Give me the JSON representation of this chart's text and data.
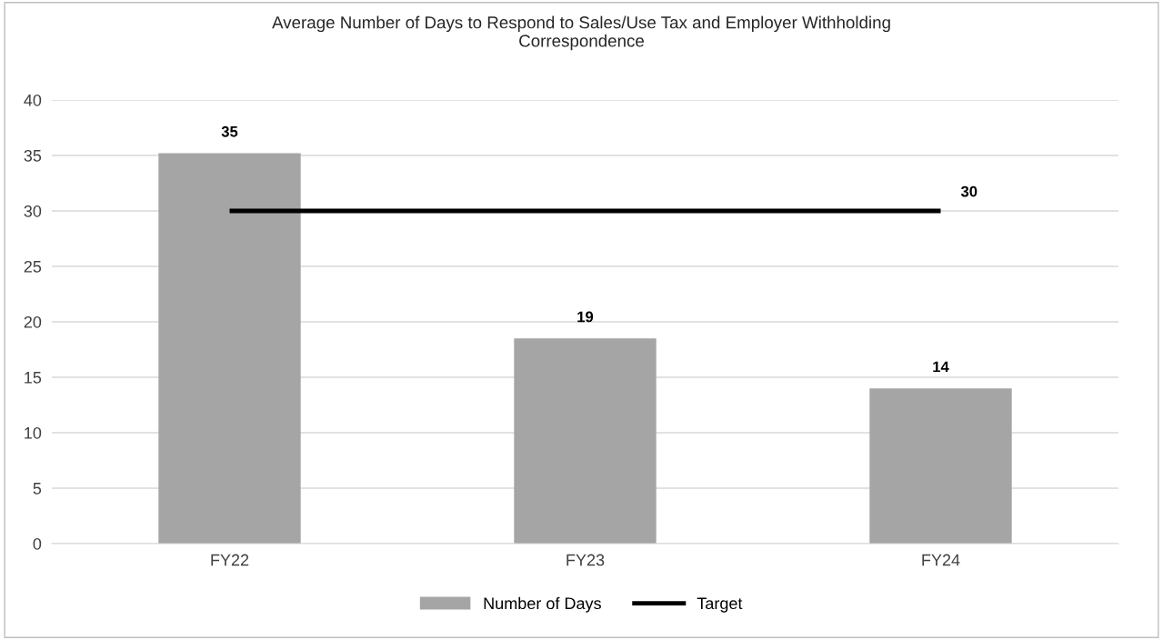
{
  "chart_data": {
    "type": "bar",
    "title": "Average Number of Days to Respond to Sales/Use Tax and Employer Withholding\nCorrespondence",
    "categories": [
      "FY22",
      "FY23",
      "FY24"
    ],
    "series": [
      {
        "name": "Number of Days",
        "color": "#a5a5a5",
        "values": [
          35.2,
          18.5,
          14
        ],
        "value_labels": [
          "35",
          "19",
          "14"
        ]
      },
      {
        "name": "Target",
        "type": "line",
        "color": "#000000",
        "values": [
          30,
          30,
          30
        ],
        "value_labels": [
          null,
          null,
          "30"
        ]
      }
    ],
    "ylim": [
      0,
      40
    ],
    "yticks": [
      0,
      5,
      10,
      15,
      20,
      25,
      30,
      35,
      40
    ],
    "grid": "y",
    "legend": "bottom"
  }
}
